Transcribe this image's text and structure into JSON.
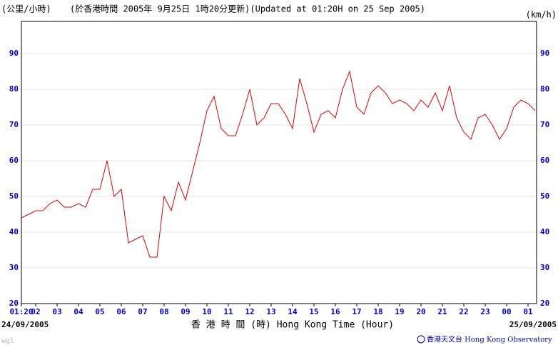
{
  "chart_data": {
    "type": "line",
    "title": "(於香港時間 2005年 9月25日 1時20分更新)(Updated at 01:20H on 25 Sep 2005)",
    "y_label": "(公里/小時)",
    "y2_label": "(km/h)",
    "x_label": "香 港 時 間 (時) Hong Kong Time (Hour)",
    "start_date": "24/09/2005",
    "end_date": "25/09/2005",
    "credit": "香港天文台 Hong Kong Observatory",
    "watermark": "wgl",
    "x": [
      "01:20",
      "01:40",
      "02:00",
      "02:20",
      "02:40",
      "03:00",
      "03:20",
      "03:40",
      "04:00",
      "04:20",
      "04:40",
      "05:00",
      "05:20",
      "05:40",
      "06:00",
      "06:20",
      "06:40",
      "07:00",
      "07:20",
      "07:40",
      "08:00",
      "08:20",
      "08:40",
      "09:00",
      "09:20",
      "09:40",
      "10:00",
      "10:20",
      "10:40",
      "11:00",
      "11:20",
      "11:40",
      "12:00",
      "12:20",
      "12:40",
      "13:00",
      "13:20",
      "13:40",
      "14:00",
      "14:20",
      "14:40",
      "15:00",
      "15:20",
      "15:40",
      "16:00",
      "16:20",
      "16:40",
      "17:00",
      "17:20",
      "17:40",
      "18:00",
      "18:20",
      "18:40",
      "19:00",
      "19:20",
      "19:40",
      "20:00",
      "20:20",
      "20:40",
      "21:00",
      "21:20",
      "21:40",
      "22:00",
      "22:20",
      "22:40",
      "23:00",
      "23:20",
      "23:40",
      "00:00",
      "00:20",
      "00:40",
      "01:00",
      "01:20"
    ],
    "series": [
      {
        "name": "wind speed",
        "color": "#dd0000",
        "values": [
          44,
          45,
          46,
          46,
          48,
          49,
          47,
          47,
          48,
          47,
          52,
          52,
          60,
          50,
          52,
          37,
          38,
          39,
          33,
          33,
          50,
          46,
          54,
          49,
          57,
          65,
          74,
          78,
          69,
          67,
          67,
          73,
          80,
          70,
          72,
          76,
          76,
          73,
          69,
          83,
          76,
          68,
          73,
          74,
          72,
          80,
          85,
          75,
          73,
          79,
          81,
          79,
          76,
          77,
          76,
          74,
          77,
          75,
          79,
          74,
          81,
          72,
          68,
          66,
          72,
          73,
          70,
          66,
          69,
          75,
          77,
          76,
          74
        ]
      }
    ],
    "ylim": [
      20,
      99
    ],
    "yticks": [
      20,
      30,
      40,
      50,
      60,
      70,
      80,
      90
    ],
    "xticks": [
      {
        "value": "01:20",
        "label": "01:20"
      },
      {
        "value": "02:00",
        "label": "02"
      },
      {
        "value": "03:00",
        "label": "03"
      },
      {
        "value": "04:00",
        "label": "04"
      },
      {
        "value": "05:00",
        "label": "05"
      },
      {
        "value": "06:00",
        "label": "06"
      },
      {
        "value": "07:00",
        "label": "07"
      },
      {
        "value": "08:00",
        "label": "08"
      },
      {
        "value": "09:00",
        "label": "09"
      },
      {
        "value": "10:00",
        "label": "10"
      },
      {
        "value": "11:00",
        "label": "11"
      },
      {
        "value": "12:00",
        "label": "12"
      },
      {
        "value": "13:00",
        "label": "13"
      },
      {
        "value": "14:00",
        "label": "14"
      },
      {
        "value": "15:00",
        "label": "15"
      },
      {
        "value": "16:00",
        "label": "16"
      },
      {
        "value": "17:00",
        "label": "17"
      },
      {
        "value": "18:00",
        "label": "18"
      },
      {
        "value": "19:00",
        "label": "19"
      },
      {
        "value": "20:00",
        "label": "20"
      },
      {
        "value": "21:00",
        "label": "21"
      },
      {
        "value": "22:00",
        "label": "22"
      },
      {
        "value": "23:00",
        "label": "23"
      },
      {
        "value": "00:00",
        "label": "00"
      },
      {
        "value": "01:00",
        "label": "01"
      }
    ],
    "grid": true
  }
}
